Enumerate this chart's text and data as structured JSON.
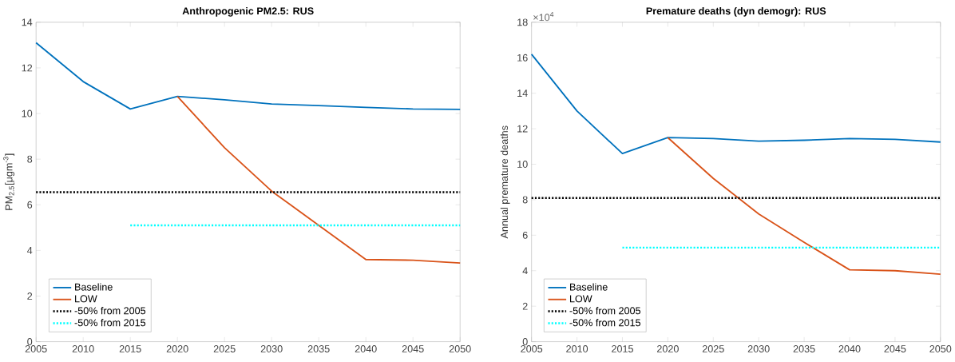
{
  "chart_data": [
    {
      "type": "line",
      "title": "Anthropogenic PM2.5: RUS",
      "ylabel": "PM$_{2.5}$[μgm$^{-3}$]",
      "xlim": [
        2005,
        2050
      ],
      "xticks": [
        2005,
        2010,
        2015,
        2020,
        2025,
        2030,
        2035,
        2040,
        2045,
        2050
      ],
      "ylim": [
        0,
        14
      ],
      "yticks": [
        0,
        2,
        4,
        6,
        8,
        10,
        12,
        14
      ],
      "legend": "bottom left",
      "series": [
        {
          "name": "Baseline",
          "color": "#0072bd",
          "line_style": "solid",
          "x": [
            2005,
            2010,
            2015,
            2020,
            2025,
            2030,
            2035,
            2040,
            2045,
            2050
          ],
          "values": [
            13.1,
            11.4,
            10.2,
            10.75,
            10.6,
            10.42,
            10.35,
            10.27,
            10.2,
            10.18
          ]
        },
        {
          "name": "LOW",
          "color": "#d95319",
          "line_style": "solid",
          "x": [
            2020,
            2025,
            2030,
            2035,
            2040,
            2045,
            2050
          ],
          "values": [
            10.75,
            8.5,
            6.6,
            5.1,
            3.6,
            3.57,
            3.45
          ]
        },
        {
          "name": "-50% from 2005",
          "color": "#000000",
          "line_style": "dotted",
          "x": [
            2005,
            2050
          ],
          "values": [
            6.55,
            6.55
          ]
        },
        {
          "name": "-50% from 2015",
          "color": "#00ffff",
          "line_style": "dotted",
          "x": [
            2015,
            2050
          ],
          "values": [
            5.1,
            5.1
          ]
        }
      ]
    },
    {
      "type": "line",
      "title": "Premature deaths (dyn demogr): RUS",
      "ylabel": "Annual premature deaths",
      "annotations": [
        "×10$^{4}$"
      ],
      "xlim": [
        2005,
        2050
      ],
      "xticks": [
        2005,
        2010,
        2015,
        2020,
        2025,
        2030,
        2035,
        2040,
        2045,
        2050
      ],
      "ylim": [
        0,
        18
      ],
      "yticks": [
        0,
        2,
        4,
        6,
        8,
        10,
        12,
        14,
        16,
        18
      ],
      "legend": "bottom left",
      "series": [
        {
          "name": "Baseline",
          "color": "#0072bd",
          "line_style": "solid",
          "x": [
            2005,
            2010,
            2015,
            2020,
            2025,
            2030,
            2035,
            2040,
            2045,
            2050
          ],
          "values": [
            16.2,
            13.0,
            10.6,
            11.5,
            11.45,
            11.3,
            11.35,
            11.45,
            11.4,
            11.25
          ]
        },
        {
          "name": "LOW",
          "color": "#d95319",
          "line_style": "solid",
          "x": [
            2020,
            2025,
            2030,
            2035,
            2040,
            2045,
            2050
          ],
          "values": [
            11.5,
            9.2,
            7.2,
            5.6,
            4.05,
            4.0,
            3.8
          ]
        },
        {
          "name": "-50% from 2005",
          "color": "#000000",
          "line_style": "dotted",
          "x": [
            2005,
            2050
          ],
          "values": [
            8.1,
            8.1
          ]
        },
        {
          "name": "-50% from 2015",
          "color": "#00ffff",
          "line_style": "dotted",
          "x": [
            2015,
            2050
          ],
          "values": [
            5.3,
            5.3
          ]
        }
      ]
    }
  ]
}
